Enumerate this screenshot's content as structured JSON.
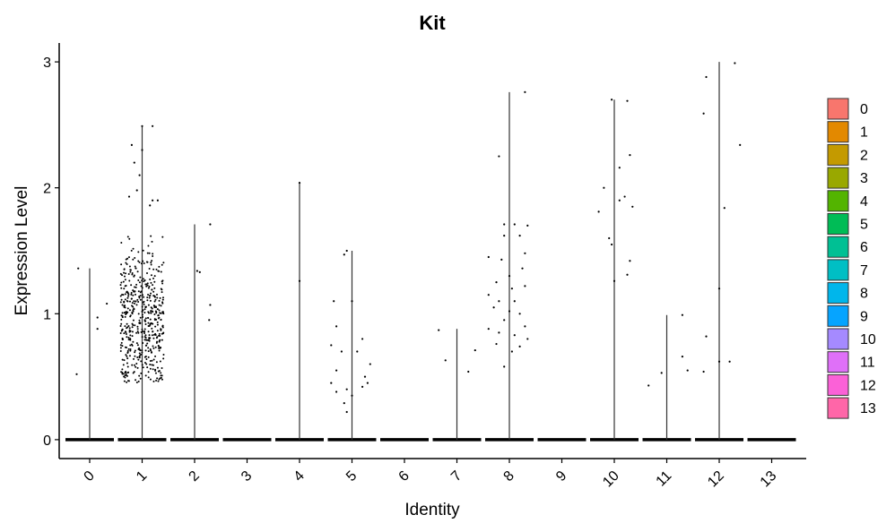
{
  "chart_data": {
    "type": "violin",
    "title": "Kit",
    "xlabel": "Identity",
    "ylabel": "Expression Level",
    "ylim": [
      -0.15,
      3.15
    ],
    "yticks": [
      0,
      1,
      2,
      3
    ],
    "legend_position": "right",
    "categories": [
      "0",
      "1",
      "2",
      "3",
      "4",
      "5",
      "6",
      "7",
      "8",
      "9",
      "10",
      "11",
      "12",
      "13"
    ],
    "colors": [
      "#F8766D",
      "#E38900",
      "#C49A00",
      "#99A800",
      "#53B400",
      "#00BC56",
      "#00C094",
      "#00BFC4",
      "#00B6EB",
      "#06A4FF",
      "#A58AFF",
      "#DF70F8",
      "#FB61D7",
      "#FF66A8"
    ],
    "max_values": [
      1.36,
      2.49,
      1.71,
      0.0,
      2.04,
      1.5,
      0.0,
      0.88,
      2.76,
      0.0,
      2.7,
      0.99,
      3.0,
      0.0
    ],
    "points": [
      [
        [
          -0.25,
          0.52
        ],
        [
          -0.22,
          1.36
        ],
        [
          0.15,
          0.97
        ],
        [
          0.15,
          0.88
        ],
        [
          0.33,
          1.08
        ]
      ],
      [
        [
          0.0,
          2.49
        ],
        [
          0.2,
          2.49
        ],
        [
          -0.2,
          2.34
        ],
        [
          -0.15,
          2.2
        ],
        [
          -0.25,
          1.93
        ],
        [
          -0.1,
          1.98
        ],
        [
          0.2,
          1.9
        ],
        [
          0.3,
          1.9
        ],
        [
          0.0,
          2.3
        ],
        [
          -0.05,
          2.1
        ],
        [
          0.15,
          1.86
        ]
      ],
      [
        [
          0.1,
          1.33
        ],
        [
          0.05,
          1.34
        ],
        [
          0.3,
          1.71
        ],
        [
          0.3,
          1.07
        ],
        [
          0.28,
          0.95
        ]
      ],
      [],
      [
        [
          0.0,
          2.04
        ],
        [
          0.0,
          1.26
        ]
      ],
      [
        [
          -0.1,
          1.5
        ],
        [
          -0.15,
          1.47
        ],
        [
          -0.35,
          1.1
        ],
        [
          0.0,
          1.1
        ],
        [
          -0.3,
          0.9
        ],
        [
          0.2,
          0.8
        ],
        [
          -0.4,
          0.75
        ],
        [
          -0.2,
          0.7
        ],
        [
          0.1,
          0.7
        ],
        [
          -0.3,
          0.55
        ],
        [
          0.35,
          0.6
        ],
        [
          0.25,
          0.5
        ],
        [
          -0.4,
          0.45
        ],
        [
          -0.1,
          0.4
        ],
        [
          0.2,
          0.42
        ],
        [
          0.0,
          0.35
        ],
        [
          -0.1,
          0.22
        ],
        [
          -0.15,
          0.29
        ],
        [
          0.3,
          0.45
        ],
        [
          -0.3,
          0.38
        ]
      ],
      [],
      [
        [
          -0.35,
          0.87
        ],
        [
          -0.22,
          0.63
        ],
        [
          0.22,
          0.54
        ],
        [
          0.35,
          0.71
        ]
      ],
      [
        [
          0.3,
          2.76
        ],
        [
          -0.2,
          2.25
        ],
        [
          -0.1,
          1.71
        ],
        [
          0.1,
          1.71
        ],
        [
          0.35,
          1.7
        ],
        [
          -0.1,
          1.62
        ],
        [
          0.2,
          1.62
        ],
        [
          -0.4,
          1.45
        ],
        [
          0.3,
          1.48
        ],
        [
          -0.15,
          1.43
        ],
        [
          0.25,
          1.36
        ],
        [
          0.0,
          1.3
        ],
        [
          -0.25,
          1.25
        ],
        [
          0.05,
          1.2
        ],
        [
          0.3,
          1.22
        ],
        [
          -0.4,
          1.15
        ],
        [
          -0.2,
          1.1
        ],
        [
          0.1,
          1.1
        ],
        [
          -0.3,
          1.05
        ],
        [
          0.0,
          1.02
        ],
        [
          0.2,
          1.0
        ],
        [
          -0.1,
          0.95
        ],
        [
          0.3,
          0.9
        ],
        [
          -0.4,
          0.88
        ],
        [
          -0.2,
          0.85
        ],
        [
          0.1,
          0.83
        ],
        [
          0.35,
          0.8
        ],
        [
          -0.25,
          0.76
        ],
        [
          0.2,
          0.74
        ],
        [
          0.05,
          0.7
        ],
        [
          -0.1,
          0.58
        ]
      ],
      [],
      [
        [
          0.25,
          2.69
        ],
        [
          -0.05,
          2.7
        ],
        [
          0.3,
          2.26
        ],
        [
          0.1,
          2.16
        ],
        [
          -0.2,
          2.0
        ],
        [
          0.2,
          1.93
        ],
        [
          0.1,
          1.9
        ],
        [
          0.35,
          1.85
        ],
        [
          -0.3,
          1.81
        ],
        [
          -0.1,
          1.6
        ],
        [
          -0.05,
          1.55
        ],
        [
          0.3,
          1.42
        ],
        [
          0.25,
          1.31
        ],
        [
          0.0,
          1.26
        ]
      ],
      [
        [
          0.3,
          0.99
        ],
        [
          -0.35,
          0.43
        ],
        [
          -0.1,
          0.53
        ],
        [
          0.3,
          0.66
        ],
        [
          0.4,
          0.55
        ]
      ],
      [
        [
          -0.25,
          2.88
        ],
        [
          0.3,
          2.99
        ],
        [
          -0.3,
          2.59
        ],
        [
          0.4,
          2.34
        ],
        [
          0.1,
          1.84
        ],
        [
          0.0,
          1.2
        ],
        [
          -0.25,
          0.82
        ],
        [
          -0.3,
          0.54
        ],
        [
          0.2,
          0.62
        ],
        [
          0.0,
          0.62
        ]
      ],
      []
    ]
  }
}
